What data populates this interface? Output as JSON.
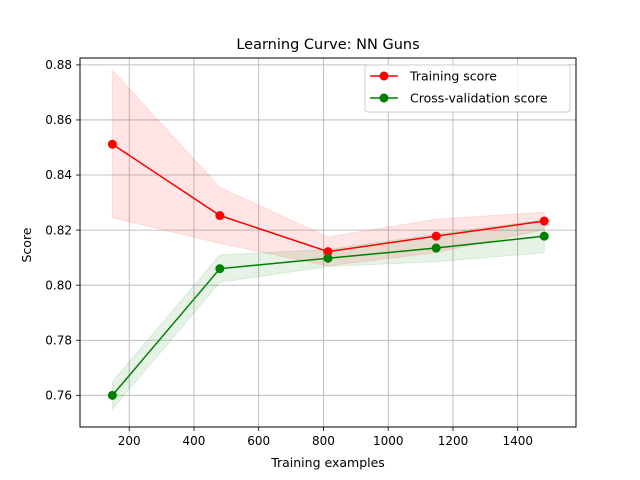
{
  "chart_data": {
    "type": "line",
    "title": "Learning Curve: NN Guns",
    "xlabel": "Training examples",
    "ylabel": "Score",
    "xlim": [
      48,
      1580
    ],
    "ylim": [
      0.7485,
      0.8825
    ],
    "xticks": [
      200,
      400,
      600,
      800,
      1000,
      1200,
      1400
    ],
    "yticks": [
      0.76,
      0.78,
      0.8,
      0.82,
      0.84,
      0.86,
      0.88
    ],
    "ytick_labels": [
      "0.76",
      "0.78",
      "0.80",
      "0.82",
      "0.84",
      "0.86",
      "0.88"
    ],
    "grid": true,
    "legend_position": "top-right",
    "x": [
      148,
      480,
      814,
      1148,
      1482
    ],
    "series": [
      {
        "name": "Training score",
        "color": "#ff0000",
        "band_color": "#ff0000",
        "values": [
          0.8512,
          0.8253,
          0.8122,
          0.8178,
          0.8233
        ],
        "upper": [
          0.878,
          0.8355,
          0.8175,
          0.824,
          0.8265
        ],
        "lower": [
          0.8245,
          0.8152,
          0.807,
          0.8118,
          0.8202
        ]
      },
      {
        "name": "Cross-validation score",
        "color": "#008000",
        "band_color": "#008000",
        "values": [
          0.76,
          0.806,
          0.8098,
          0.8135,
          0.8178
        ],
        "upper": [
          0.765,
          0.811,
          0.813,
          0.8185,
          0.8238
        ],
        "lower": [
          0.755,
          0.801,
          0.8068,
          0.8085,
          0.8118
        ]
      }
    ]
  }
}
